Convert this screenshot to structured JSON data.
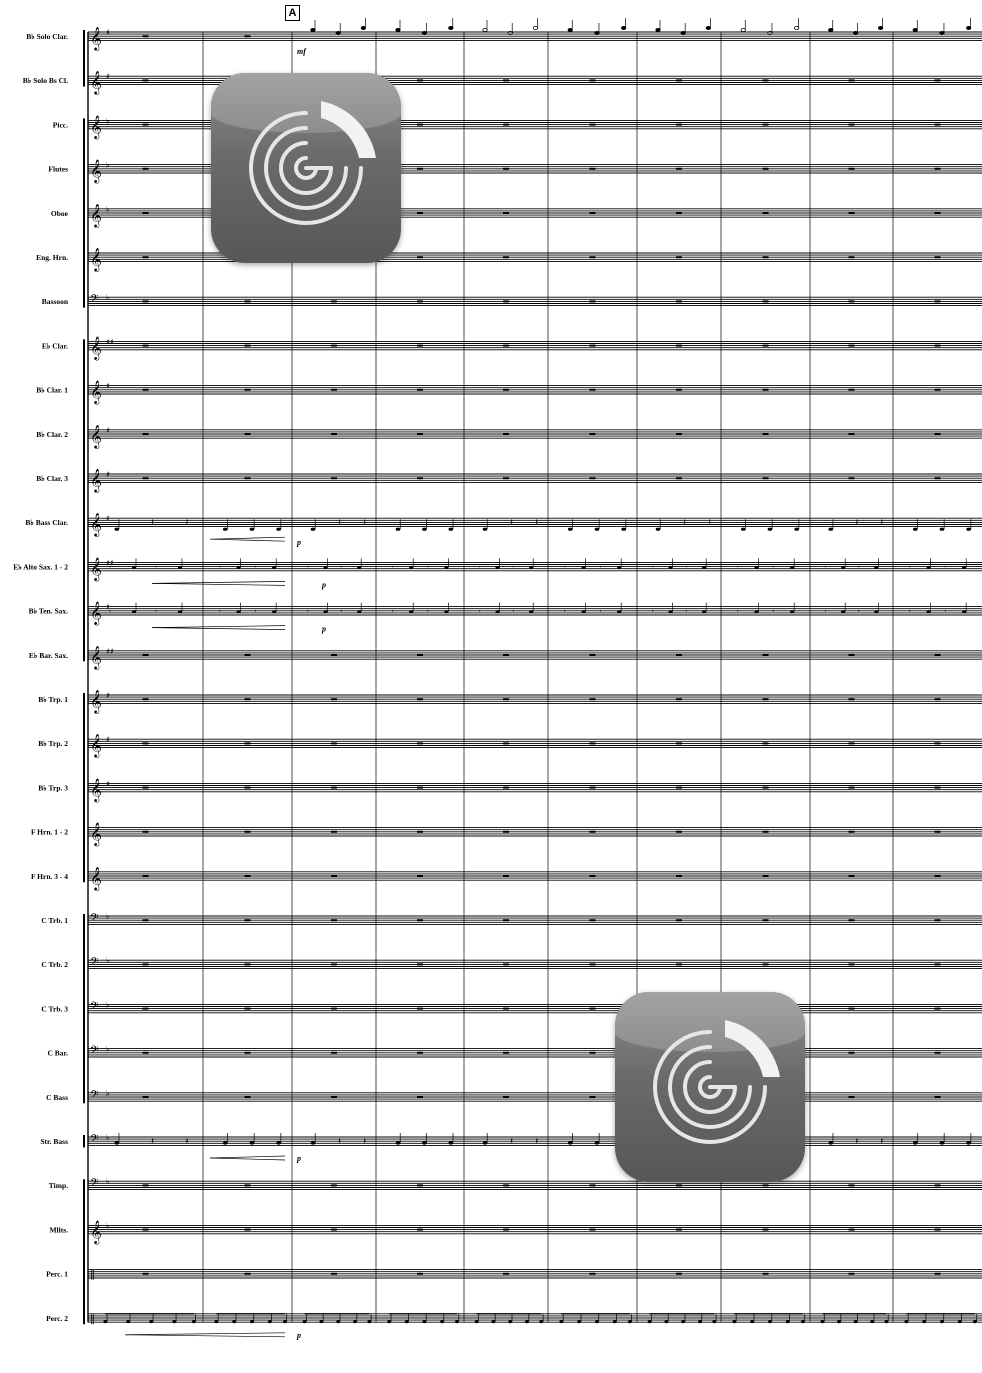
{
  "score": {
    "rehearsal_mark": "A",
    "measures_per_system": 10,
    "instruments": [
      {
        "label": "B♭ Solo Clar.",
        "clef": "treble",
        "key": "♯",
        "part": "solo"
      },
      {
        "label": "B♭ Solo Bs Cl.",
        "clef": "treble",
        "key": "♯",
        "part": "rest"
      },
      {
        "label": "Picc.",
        "clef": "treble",
        "key": "♭",
        "part": "rest"
      },
      {
        "label": "Flutes",
        "clef": "treble",
        "key": "♭",
        "part": "rest"
      },
      {
        "label": "Oboe",
        "clef": "treble",
        "key": "♭",
        "part": "rest"
      },
      {
        "label": "Eng. Hrn.",
        "clef": "treble",
        "key": "",
        "part": "rest"
      },
      {
        "label": "Bassoon",
        "clef": "bass",
        "key": "♭",
        "part": "rest"
      },
      {
        "label": "E♭ Clar.",
        "clef": "treble",
        "key": "♯♯",
        "part": "rest"
      },
      {
        "label": "B♭ Clar. 1",
        "clef": "treble",
        "key": "♯",
        "part": "rest"
      },
      {
        "label": "B♭ Clar. 2",
        "clef": "treble",
        "key": "♯",
        "part": "rest"
      },
      {
        "label": "B♭ Clar. 3",
        "clef": "treble",
        "key": "♯",
        "part": "rest"
      },
      {
        "label": "B♭ Bass Clar.",
        "clef": "treble",
        "key": "♯",
        "part": "bass"
      },
      {
        "label": "E♭ Alto Sax. 1 - 2",
        "clef": "treble",
        "key": "♯♯",
        "part": "offbeat"
      },
      {
        "label": "B♭ Ten. Sax.",
        "clef": "treble",
        "key": "♯",
        "part": "offbeat"
      },
      {
        "label": "E♭ Bar. Sax.",
        "clef": "treble",
        "key": "♯♯",
        "part": "rest"
      },
      {
        "label": "B♭ Trp. 1",
        "clef": "treble",
        "key": "♯",
        "part": "rest"
      },
      {
        "label": "B♭ Trp. 2",
        "clef": "treble",
        "key": "♯",
        "part": "rest"
      },
      {
        "label": "B♭ Trp. 3",
        "clef": "treble",
        "key": "♯",
        "part": "rest"
      },
      {
        "label": "F Hrn. 1 - 2",
        "clef": "treble",
        "key": "",
        "part": "rest"
      },
      {
        "label": "F Hrn. 3 - 4",
        "clef": "treble",
        "key": "",
        "part": "rest"
      },
      {
        "label": "C Trb. 1",
        "clef": "bass",
        "key": "♭",
        "part": "rest"
      },
      {
        "label": "C Trb. 2",
        "clef": "bass",
        "key": "♭",
        "part": "rest"
      },
      {
        "label": "C Trb. 3",
        "clef": "bass",
        "key": "♭",
        "part": "rest"
      },
      {
        "label": "C Bar.",
        "clef": "bass",
        "key": "♭",
        "part": "rest"
      },
      {
        "label": "C Bass",
        "clef": "bass",
        "key": "♭",
        "part": "rest"
      },
      {
        "label": "Str. Bass",
        "clef": "bass",
        "key": "♭",
        "part": "bass"
      },
      {
        "label": "Timp.",
        "clef": "bass",
        "key": "♭",
        "part": "rest"
      },
      {
        "label": "Mllts.",
        "clef": "treble",
        "key": "♭",
        "part": "rest"
      },
      {
        "label": "Perc. 1",
        "clef": "perc",
        "key": "",
        "part": "rest"
      },
      {
        "label": "Perc. 2",
        "clef": "perc",
        "key": "",
        "part": "drum"
      }
    ],
    "dynamics": {
      "solo_clar_m3": "mf",
      "bass_clar_m3": "p",
      "alto_sax_m3": "p",
      "ten_sax_m3": "p",
      "str_bass_m3": "p",
      "perc2_m3": "p"
    }
  },
  "overlay_icons": [
    {
      "name": "watermark-app-icon-top",
      "color_top": "#a3a3a3",
      "color_bottom": "#575757"
    },
    {
      "name": "watermark-app-icon-bottom",
      "color_top": "#a3a3a3",
      "color_bottom": "#575757"
    }
  ]
}
